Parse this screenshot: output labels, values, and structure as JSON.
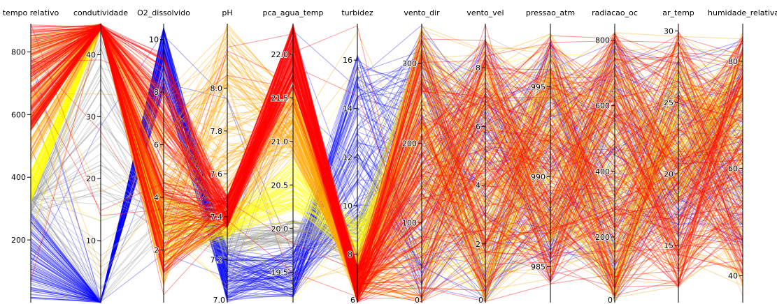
{
  "chart_data": {
    "type": "parallel-coordinates",
    "color_scale": [
      "#0000ff",
      "#9a9a9a",
      "#ffff00",
      "#ffa500",
      "#ff0000"
    ],
    "axes": [
      {
        "name": "tempo relativo",
        "range": [
          0,
          890
        ],
        "ticks": [
          200,
          400,
          600,
          800
        ]
      },
      {
        "name": "condutividade",
        "range": [
          0,
          45
        ],
        "ticks": [
          10,
          20,
          30,
          40
        ]
      },
      {
        "name": "O2_dissolvido",
        "range": [
          0,
          10.6
        ],
        "ticks": [
          2,
          4,
          6,
          8,
          10
        ]
      },
      {
        "name": "pH",
        "range": [
          7.0,
          8.3
        ],
        "ticks": [
          7.2,
          7.4,
          7.6,
          7.8,
          8.0
        ],
        "tick_labels": [
          "7.2",
          "7.4",
          "7.6",
          "7.8",
          "8.0"
        ],
        "extra_labels": [
          "7.0"
        ]
      },
      {
        "name": "pca_agua_temp",
        "range": [
          19.15,
          22.35
        ],
        "ticks": [
          19.5,
          20.0,
          20.5,
          21.0,
          21.5,
          22.0
        ],
        "tick_labels": [
          "19.5",
          "20.0",
          "20.5",
          "21.0",
          "21.5",
          "22.0"
        ]
      },
      {
        "name": "turbidez",
        "range": [
          6,
          17.5
        ],
        "ticks": [
          8,
          10,
          12,
          14,
          16
        ],
        "extra_labels": [
          "6"
        ]
      },
      {
        "name": "vento_dir",
        "range": [
          0,
          350
        ],
        "ticks": [
          100,
          200,
          300
        ],
        "extra_labels": [
          "0"
        ]
      },
      {
        "name": "vento_vel",
        "range": [
          0,
          9.5
        ],
        "ticks": [
          2,
          4,
          6,
          8
        ],
        "extra_labels": [
          "0"
        ]
      },
      {
        "name": "pressao_atm",
        "range": [
          983,
          998.5
        ],
        "ticks": [
          985,
          990,
          995
        ]
      },
      {
        "name": "radiacao_oc",
        "range": [
          0,
          850
        ],
        "ticks": [
          200,
          400,
          600,
          800
        ],
        "extra_labels": [
          "0"
        ]
      },
      {
        "name": "ar_temp",
        "range": [
          11,
          30.5
        ],
        "ticks": [
          15,
          20,
          25,
          30
        ]
      },
      {
        "name": "humidade_relativa",
        "range": [
          35,
          87
        ],
        "ticks": [
          40,
          60,
          80
        ]
      }
    ],
    "bands": [
      {
        "color": "#0000ff",
        "share": 0.2,
        "values": [
          [
            10,
            290
          ],
          [
            0,
            0.3
          ],
          [
            8.0,
            10.5
          ],
          [
            7.0,
            7.25
          ],
          [
            19.2,
            19.8
          ],
          [
            9,
            16.5
          ],
          [
            0,
            350
          ],
          [
            0,
            9
          ],
          [
            984,
            998
          ],
          [
            0,
            800
          ],
          [
            14,
            28
          ],
          [
            45,
            85
          ]
        ]
      },
      {
        "color": "#9a9a9a",
        "share": 0.1,
        "values": [
          [
            280,
            340
          ],
          [
            0,
            44
          ],
          [
            2.5,
            4.5
          ],
          [
            7.2,
            7.35
          ],
          [
            19.8,
            20.1
          ],
          [
            7.5,
            9.5
          ],
          [
            120,
            330
          ],
          [
            0,
            8
          ],
          [
            986,
            997
          ],
          [
            0,
            700
          ],
          [
            18,
            26
          ],
          [
            60,
            80
          ]
        ]
      },
      {
        "color": "#ffff00",
        "share": 0.15,
        "values": [
          [
            320,
            420
          ],
          [
            44,
            45
          ],
          [
            1.5,
            4.0
          ],
          [
            7.3,
            7.45
          ],
          [
            20.2,
            20.8
          ],
          [
            7.5,
            9.5
          ],
          [
            50,
            340
          ],
          [
            0,
            8
          ],
          [
            986,
            997
          ],
          [
            0,
            750
          ],
          [
            18,
            28
          ],
          [
            60,
            82
          ]
        ]
      },
      {
        "color": "#ffa500",
        "share": 0.25,
        "values": [
          [
            450,
            860
          ],
          [
            44,
            45
          ],
          [
            0.5,
            8.0
          ],
          [
            7.3,
            8.3
          ],
          [
            20.8,
            21.6
          ],
          [
            6,
            8
          ],
          [
            0,
            350
          ],
          [
            0,
            9
          ],
          [
            984,
            998
          ],
          [
            0,
            830
          ],
          [
            12,
            30
          ],
          [
            38,
            86
          ]
        ]
      },
      {
        "color": "#ff0000",
        "share": 0.3,
        "values": [
          [
            550,
            890
          ],
          [
            44,
            45
          ],
          [
            1.0,
            9.5
          ],
          [
            7.35,
            7.5
          ],
          [
            21.6,
            22.35
          ],
          [
            6,
            7.5
          ],
          [
            0,
            350
          ],
          [
            0,
            9
          ],
          [
            984,
            998
          ],
          [
            0,
            830
          ],
          [
            12,
            30
          ],
          [
            40,
            85
          ]
        ]
      }
    ]
  }
}
